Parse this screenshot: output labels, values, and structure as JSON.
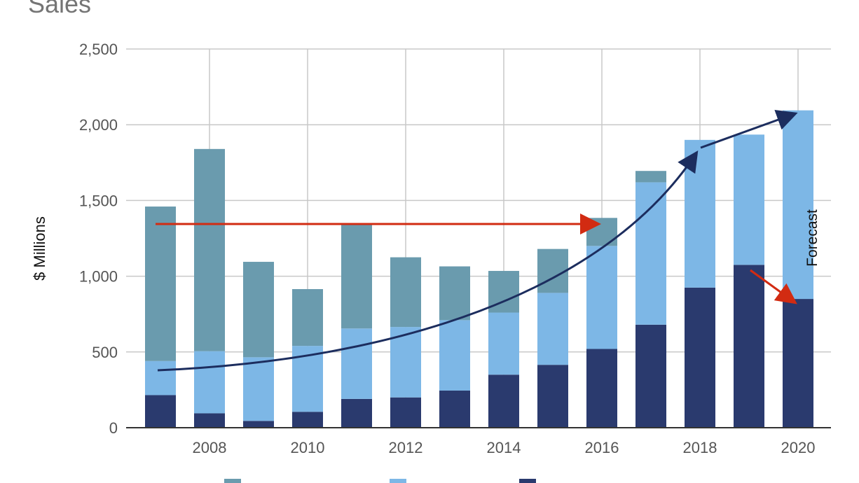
{
  "chart_data": {
    "type": "bar",
    "stacked": true,
    "title": "Sales",
    "ylabel": "$ Millions",
    "xlabel": "",
    "ylim": [
      0,
      2500
    ],
    "yticks": [
      0,
      500,
      1000,
      1500,
      2000,
      2500
    ],
    "ytick_labels": [
      "0",
      "500",
      "1,000",
      "1,500",
      "2,000",
      "2,500"
    ],
    "xtick_labels": [
      "2008",
      "2010",
      "2012",
      "2014",
      "2016",
      "2018",
      "2020"
    ],
    "grid": true,
    "categories": [
      "2007",
      "2008",
      "2009",
      "2010",
      "2011",
      "2012",
      "2013",
      "2014",
      "2015",
      "2016",
      "2017",
      "2018",
      "2019",
      "2020"
    ],
    "series": [
      {
        "name": "",
        "color": "#2a3a6e",
        "values": [
          215,
          95,
          45,
          105,
          190,
          200,
          245,
          350,
          415,
          520,
          680,
          925,
          1075,
          850
        ]
      },
      {
        "name": "",
        "color": "#7db7e6",
        "values": [
          225,
          410,
          420,
          435,
          465,
          465,
          465,
          410,
          475,
          680,
          940,
          975,
          860,
          1245
        ]
      },
      {
        "name": "",
        "color": "#6a9bae",
        "values": [
          1020,
          1335,
          630,
          375,
          695,
          460,
          355,
          275,
          290,
          185,
          75,
          0,
          0,
          0
        ]
      }
    ],
    "annotations": {
      "forecast_label": "Forecast"
    },
    "legend_position": "bottom"
  }
}
